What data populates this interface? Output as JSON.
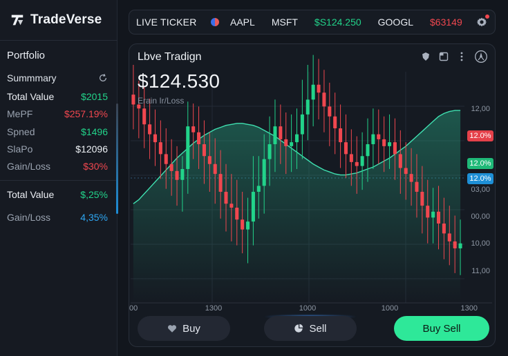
{
  "brand": {
    "name": "TradeVerse"
  },
  "sidebar": {
    "title": "Portfolio",
    "summary_label": "Summmary",
    "rows": [
      {
        "label": "Total Value",
        "value": "$2015",
        "value_color": "green",
        "label_style": "strong"
      },
      {
        "label": "MePF",
        "value": "$257.19%",
        "value_color": "red",
        "label_style": "dim"
      },
      {
        "label": "Spned",
        "value": "$1496",
        "value_color": "green",
        "label_style": "dim"
      },
      {
        "label": "SlaPo",
        "value": "$12096",
        "value_color": "white",
        "label_style": "dim"
      },
      {
        "label": "Gain/Loss",
        "value": "$30%",
        "value_color": "red",
        "label_style": "dim"
      }
    ],
    "totals": [
      {
        "label": "Total Value",
        "value": "$,25%",
        "value_color": "green"
      },
      {
        "label": "Gain/Loss",
        "value": "4,35%",
        "value_color": "blue"
      }
    ]
  },
  "ticker": {
    "label": "LIVE TICKER",
    "items": [
      {
        "text": "AAPL",
        "color": "white"
      },
      {
        "text": "MSFT",
        "color": "white"
      },
      {
        "text": "$S124.250",
        "color": "green"
      },
      {
        "text": "GOOGL",
        "color": "white"
      },
      {
        "text": "$63149",
        "color": "red"
      }
    ]
  },
  "chart": {
    "title": "Lbve Tradign",
    "price": "$124.530",
    "subtitle": "Erain Ir/Loss",
    "y_labels": [
      "12,00",
      "10,00",
      "03,00",
      "00,00",
      "10,00",
      "11,00"
    ],
    "x_labels": [
      "00",
      "1300",
      "1000",
      "1000",
      "1300"
    ],
    "badges": {
      "red": "12.0%",
      "green": "12.0%",
      "blue": "12.0%"
    },
    "colors": {
      "up": "#22d38a",
      "down": "#f0474f",
      "ma": "#3fe0b0"
    }
  },
  "chart_data": {
    "type": "candlestick",
    "candles": [
      [
        210,
        200,
        220,
        195
      ],
      [
        200,
        196,
        204,
        186
      ],
      [
        196,
        180,
        198,
        176
      ],
      [
        180,
        170,
        186,
        165
      ],
      [
        170,
        162,
        175,
        158
      ],
      [
        162,
        150,
        164,
        145
      ],
      [
        150,
        140,
        156,
        135
      ],
      [
        140,
        133,
        145,
        128
      ],
      [
        133,
        124,
        138,
        118
      ],
      [
        124,
        135,
        128,
        112
      ],
      [
        135,
        178,
        183,
        130
      ],
      [
        178,
        172,
        181,
        165
      ],
      [
        172,
        160,
        178,
        155
      ],
      [
        160,
        148,
        164,
        140
      ],
      [
        148,
        140,
        152,
        132
      ],
      [
        140,
        130,
        146,
        120
      ],
      [
        130,
        112,
        134,
        105
      ],
      [
        112,
        100,
        120,
        92
      ],
      [
        100,
        96,
        110,
        82
      ],
      [
        96,
        84,
        104,
        78
      ],
      [
        84,
        74,
        92,
        70
      ],
      [
        74,
        82,
        86,
        60
      ],
      [
        82,
        112,
        128,
        78
      ],
      [
        112,
        118,
        128,
        105
      ],
      [
        118,
        145,
        150,
        110
      ],
      [
        145,
        160,
        168,
        138
      ],
      [
        160,
        178,
        185,
        152
      ],
      [
        178,
        165,
        180,
        160
      ],
      [
        165,
        158,
        172,
        150
      ],
      [
        158,
        162,
        170,
        152
      ],
      [
        162,
        170,
        176,
        155
      ],
      [
        170,
        190,
        205,
        165
      ],
      [
        190,
        205,
        220,
        184
      ],
      [
        205,
        220,
        230,
        198
      ],
      [
        220,
        212,
        226,
        205
      ],
      [
        212,
        198,
        215,
        192
      ],
      [
        198,
        188,
        202,
        178
      ],
      [
        188,
        176,
        192,
        170
      ],
      [
        176,
        162,
        180,
        156
      ],
      [
        162,
        150,
        170,
        146
      ],
      [
        150,
        142,
        155,
        138
      ],
      [
        142,
        138,
        148,
        130
      ],
      [
        138,
        148,
        152,
        134
      ],
      [
        148,
        160,
        166,
        142
      ],
      [
        160,
        170,
        176,
        155
      ],
      [
        170,
        165,
        175,
        160
      ],
      [
        165,
        158,
        168,
        152
      ],
      [
        158,
        162,
        170,
        155
      ],
      [
        162,
        150,
        166,
        144
      ],
      [
        150,
        136,
        154,
        130
      ],
      [
        136,
        130,
        142,
        124
      ],
      [
        130,
        122,
        136,
        118
      ],
      [
        122,
        112,
        130,
        106
      ],
      [
        112,
        98,
        118,
        90
      ],
      [
        98,
        86,
        104,
        80
      ],
      [
        86,
        92,
        96,
        80
      ],
      [
        92,
        80,
        98,
        74
      ],
      [
        80,
        70,
        86,
        64
      ],
      [
        70,
        62,
        78,
        58
      ],
      [
        62,
        55,
        68,
        50
      ],
      [
        55,
        60,
        64,
        48
      ]
    ],
    "moving_average": [
      40,
      44,
      50,
      56,
      62,
      68,
      74,
      80,
      86,
      91,
      96,
      101,
      105,
      109,
      112,
      115,
      117,
      119,
      120,
      121,
      121,
      120,
      119,
      117,
      114,
      111,
      108,
      104,
      100,
      96,
      92,
      88,
      84,
      80,
      77,
      74,
      72,
      70,
      69,
      69,
      70,
      71,
      73,
      75,
      77,
      80,
      83,
      86,
      90,
      94,
      98,
      103,
      108,
      113,
      118,
      123,
      128,
      131,
      133,
      134,
      134
    ]
  }
}
